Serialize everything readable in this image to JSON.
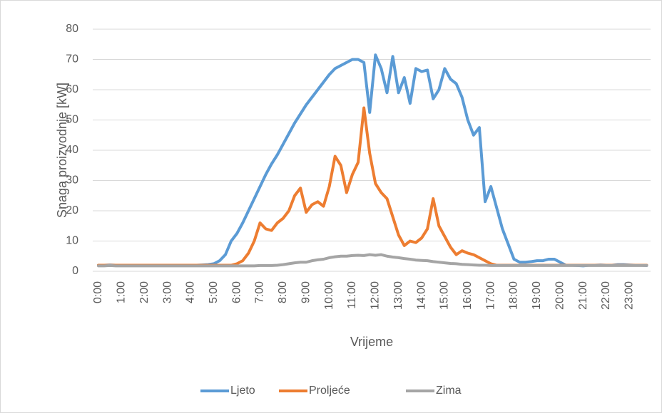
{
  "chart_data": {
    "type": "line",
    "y_label": "Snaga proizvodnje [kW]",
    "x_label": "Vrijeme",
    "categories": [
      "0:00",
      null,
      null,
      null,
      "1:00",
      null,
      null,
      null,
      "2:00",
      null,
      null,
      null,
      "3:00",
      null,
      null,
      null,
      "4:00",
      null,
      null,
      null,
      "5:00",
      null,
      null,
      null,
      "6:00",
      null,
      null,
      null,
      "7:00",
      null,
      null,
      null,
      "8:00",
      null,
      null,
      null,
      "9:00",
      null,
      null,
      null,
      "10:00",
      null,
      null,
      null,
      "11:00",
      null,
      null,
      null,
      "12:00",
      null,
      null,
      null,
      "13:00",
      null,
      null,
      null,
      "14:00",
      null,
      null,
      null,
      "15:00",
      null,
      null,
      null,
      "16:00",
      null,
      null,
      null,
      "17:00",
      null,
      null,
      null,
      "18:00",
      null,
      null,
      null,
      "19:00",
      null,
      null,
      null,
      "20:00",
      null,
      null,
      null,
      "21:00",
      null,
      null,
      null,
      "22:00",
      null,
      null,
      null,
      "23:00",
      null,
      null,
      null
    ],
    "series": [
      {
        "name": "Ljeto",
        "color": "#5b9bd5",
        "values": [
          2,
          2,
          2.1,
          2,
          2,
          2,
          2,
          2,
          2,
          2,
          2,
          2,
          2,
          2,
          2,
          2,
          2,
          2,
          2.1,
          2.2,
          2.5,
          3.5,
          5.5,
          10,
          12.5,
          16,
          20,
          24,
          28,
          32,
          35.5,
          38.5,
          42,
          45.5,
          49,
          52,
          55,
          57.5,
          60,
          62.5,
          65,
          67,
          68,
          69,
          70,
          70,
          69,
          52.5,
          71.5,
          67,
          59,
          71,
          59,
          64,
          55.5,
          67,
          66,
          66.5,
          57,
          60,
          67,
          63.5,
          62,
          57.5,
          50,
          45,
          47.5,
          23,
          28,
          21,
          14,
          9,
          4,
          3,
          3,
          3.2,
          3.5,
          3.5,
          4,
          4,
          3,
          2,
          2,
          1.9,
          1.8,
          2,
          2,
          2.1,
          2,
          2,
          2.2,
          2.2,
          2.1,
          2,
          2,
          1.9
        ]
      },
      {
        "name": "Proljeće",
        "color": "#ed7d31",
        "values": [
          2,
          2,
          2,
          2,
          2,
          2,
          2,
          2,
          2,
          2,
          2,
          2,
          2,
          2,
          2,
          2,
          2,
          2,
          2,
          2,
          2,
          2,
          2,
          2,
          2.5,
          3.5,
          6,
          10,
          16,
          14,
          13.5,
          16,
          17.5,
          20,
          25,
          27.5,
          19.5,
          22,
          23,
          21.5,
          28,
          38,
          35,
          26,
          32,
          36,
          54,
          39,
          29,
          26,
          24,
          18,
          12,
          8.5,
          10,
          9.5,
          11,
          14,
          24,
          15,
          11.5,
          8,
          5.5,
          6.8,
          6,
          5.5,
          4.5,
          3.5,
          2.5,
          2,
          2,
          2,
          2,
          2,
          2,
          2,
          2,
          2,
          2,
          2,
          2,
          2,
          2,
          2,
          2,
          2,
          2,
          2,
          2,
          2,
          2,
          2,
          2,
          2,
          2,
          2
        ]
      },
      {
        "name": "Zima",
        "color": "#a5a5a5",
        "values": [
          1.8,
          1.8,
          1.9,
          1.8,
          1.8,
          1.8,
          1.8,
          1.8,
          1.8,
          1.8,
          1.8,
          1.8,
          1.8,
          1.8,
          1.8,
          1.8,
          1.8,
          1.8,
          1.8,
          1.8,
          1.8,
          1.8,
          1.8,
          1.8,
          1.8,
          1.8,
          1.8,
          1.8,
          1.9,
          1.9,
          1.9,
          2,
          2.2,
          2.5,
          2.8,
          3,
          3,
          3.5,
          3.8,
          4,
          4.5,
          4.8,
          5,
          5,
          5.2,
          5.3,
          5.2,
          5.5,
          5.3,
          5.5,
          5,
          4.7,
          4.5,
          4.2,
          4,
          3.7,
          3.6,
          3.5,
          3.2,
          3,
          2.8,
          2.6,
          2.5,
          2.3,
          2.2,
          2.1,
          2,
          2,
          1.9,
          1.9,
          1.9,
          1.9,
          1.9,
          1.9,
          1.9,
          1.9,
          1.9,
          1.9,
          1.9,
          1.9,
          1.9,
          1.9,
          1.9,
          1.9,
          1.9,
          1.9,
          1.9,
          1.9,
          1.9,
          1.9,
          1.9,
          1.9,
          1.9,
          1.9,
          1.9,
          1.9
        ]
      }
    ],
    "ylim": [
      0,
      80
    ],
    "yticks": [
      0,
      10,
      20,
      30,
      40,
      50,
      60,
      70,
      80
    ],
    "grid": true,
    "legend": "bottom"
  }
}
